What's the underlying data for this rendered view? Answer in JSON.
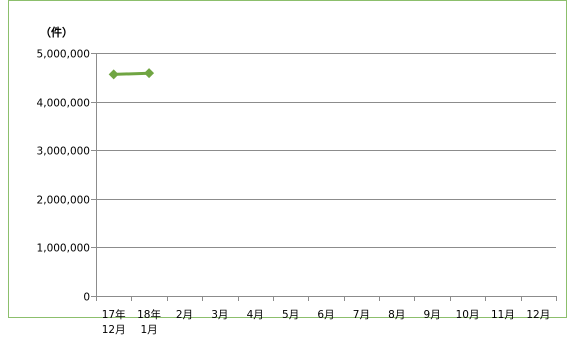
{
  "chart_data": {
    "type": "line",
    "unit_label": "（件）",
    "categories": [
      [
        "17年",
        "12月"
      ],
      [
        "18年",
        "1月"
      ],
      [
        "2月"
      ],
      [
        "3月"
      ],
      [
        "4月"
      ],
      [
        "5月"
      ],
      [
        "6月"
      ],
      [
        "7月"
      ],
      [
        "8月"
      ],
      [
        "9月"
      ],
      [
        "10月"
      ],
      [
        "11月"
      ],
      [
        "12月"
      ]
    ],
    "series": [
      {
        "values": [
          4560000,
          4585000,
          null,
          null,
          null,
          null,
          null,
          null,
          null,
          null,
          null,
          null,
          null
        ],
        "color": "#70a542",
        "marker": "diamond"
      }
    ],
    "ylim": [
      0,
      5000000
    ],
    "yticks": [
      0,
      1000000,
      2000000,
      3000000,
      4000000,
      5000000
    ],
    "ytick_labels": [
      "0",
      "1,000,000",
      "2,000,000",
      "3,000,000",
      "4,000,000",
      "5,000,000"
    ],
    "grid": true,
    "legend": "none"
  }
}
